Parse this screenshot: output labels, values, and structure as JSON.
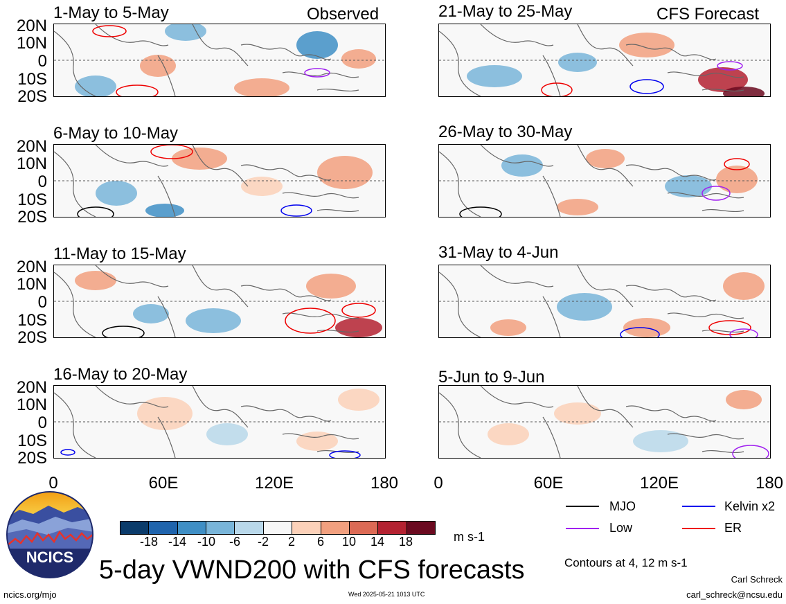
{
  "header": {
    "observed_label": "Observed",
    "forecast_label": "CFS Forecast"
  },
  "panels": {
    "left": [
      {
        "title": "1-May to 5-May"
      },
      {
        "title": "6-May to 10-May"
      },
      {
        "title": "11-May to 15-May"
      },
      {
        "title": "16-May to 20-May"
      }
    ],
    "right": [
      {
        "title": "21-May to 25-May"
      },
      {
        "title": "26-May to 30-May"
      },
      {
        "title": "31-May to 4-Jun"
      },
      {
        "title": "5-Jun to 9-Jun"
      }
    ]
  },
  "axes": {
    "lat_ticks": [
      "20N",
      "10N",
      "0",
      "10S",
      "20S"
    ],
    "lon_ticks": [
      "0",
      "60E",
      "120E",
      "180"
    ]
  },
  "colorbar": {
    "ticks": [
      "-18",
      "-14",
      "-10",
      "-6",
      "-2",
      "2",
      "6",
      "10",
      "14",
      "18"
    ],
    "units": "m s-1",
    "colors": [
      "#0b3b6b",
      "#1f64ad",
      "#3f8fc5",
      "#79b5d9",
      "#b9d8ea",
      "#f7f7f7",
      "#fcd1b9",
      "#f2a07f",
      "#dc6a55",
      "#b42231",
      "#6b0a20"
    ]
  },
  "legend": {
    "items": [
      {
        "label": "MJO",
        "color": "#000000"
      },
      {
        "label": "Kelvin x2",
        "color": "#0000ee"
      },
      {
        "label": "Low",
        "color": "#a020f0"
      },
      {
        "label": "ER",
        "color": "#ee0000"
      }
    ],
    "contours_note": "Contours at 4, 12 m s-1"
  },
  "title": "5-day VWND200 with CFS forecasts",
  "logo": {
    "text": "NCICS"
  },
  "footer": {
    "url": "ncics.org/mjo",
    "timestamp": "Wed 2025-05-21 1013 UTC",
    "author": "Carl Schreck",
    "email": "carl_schreck@ncsu.edu"
  }
}
